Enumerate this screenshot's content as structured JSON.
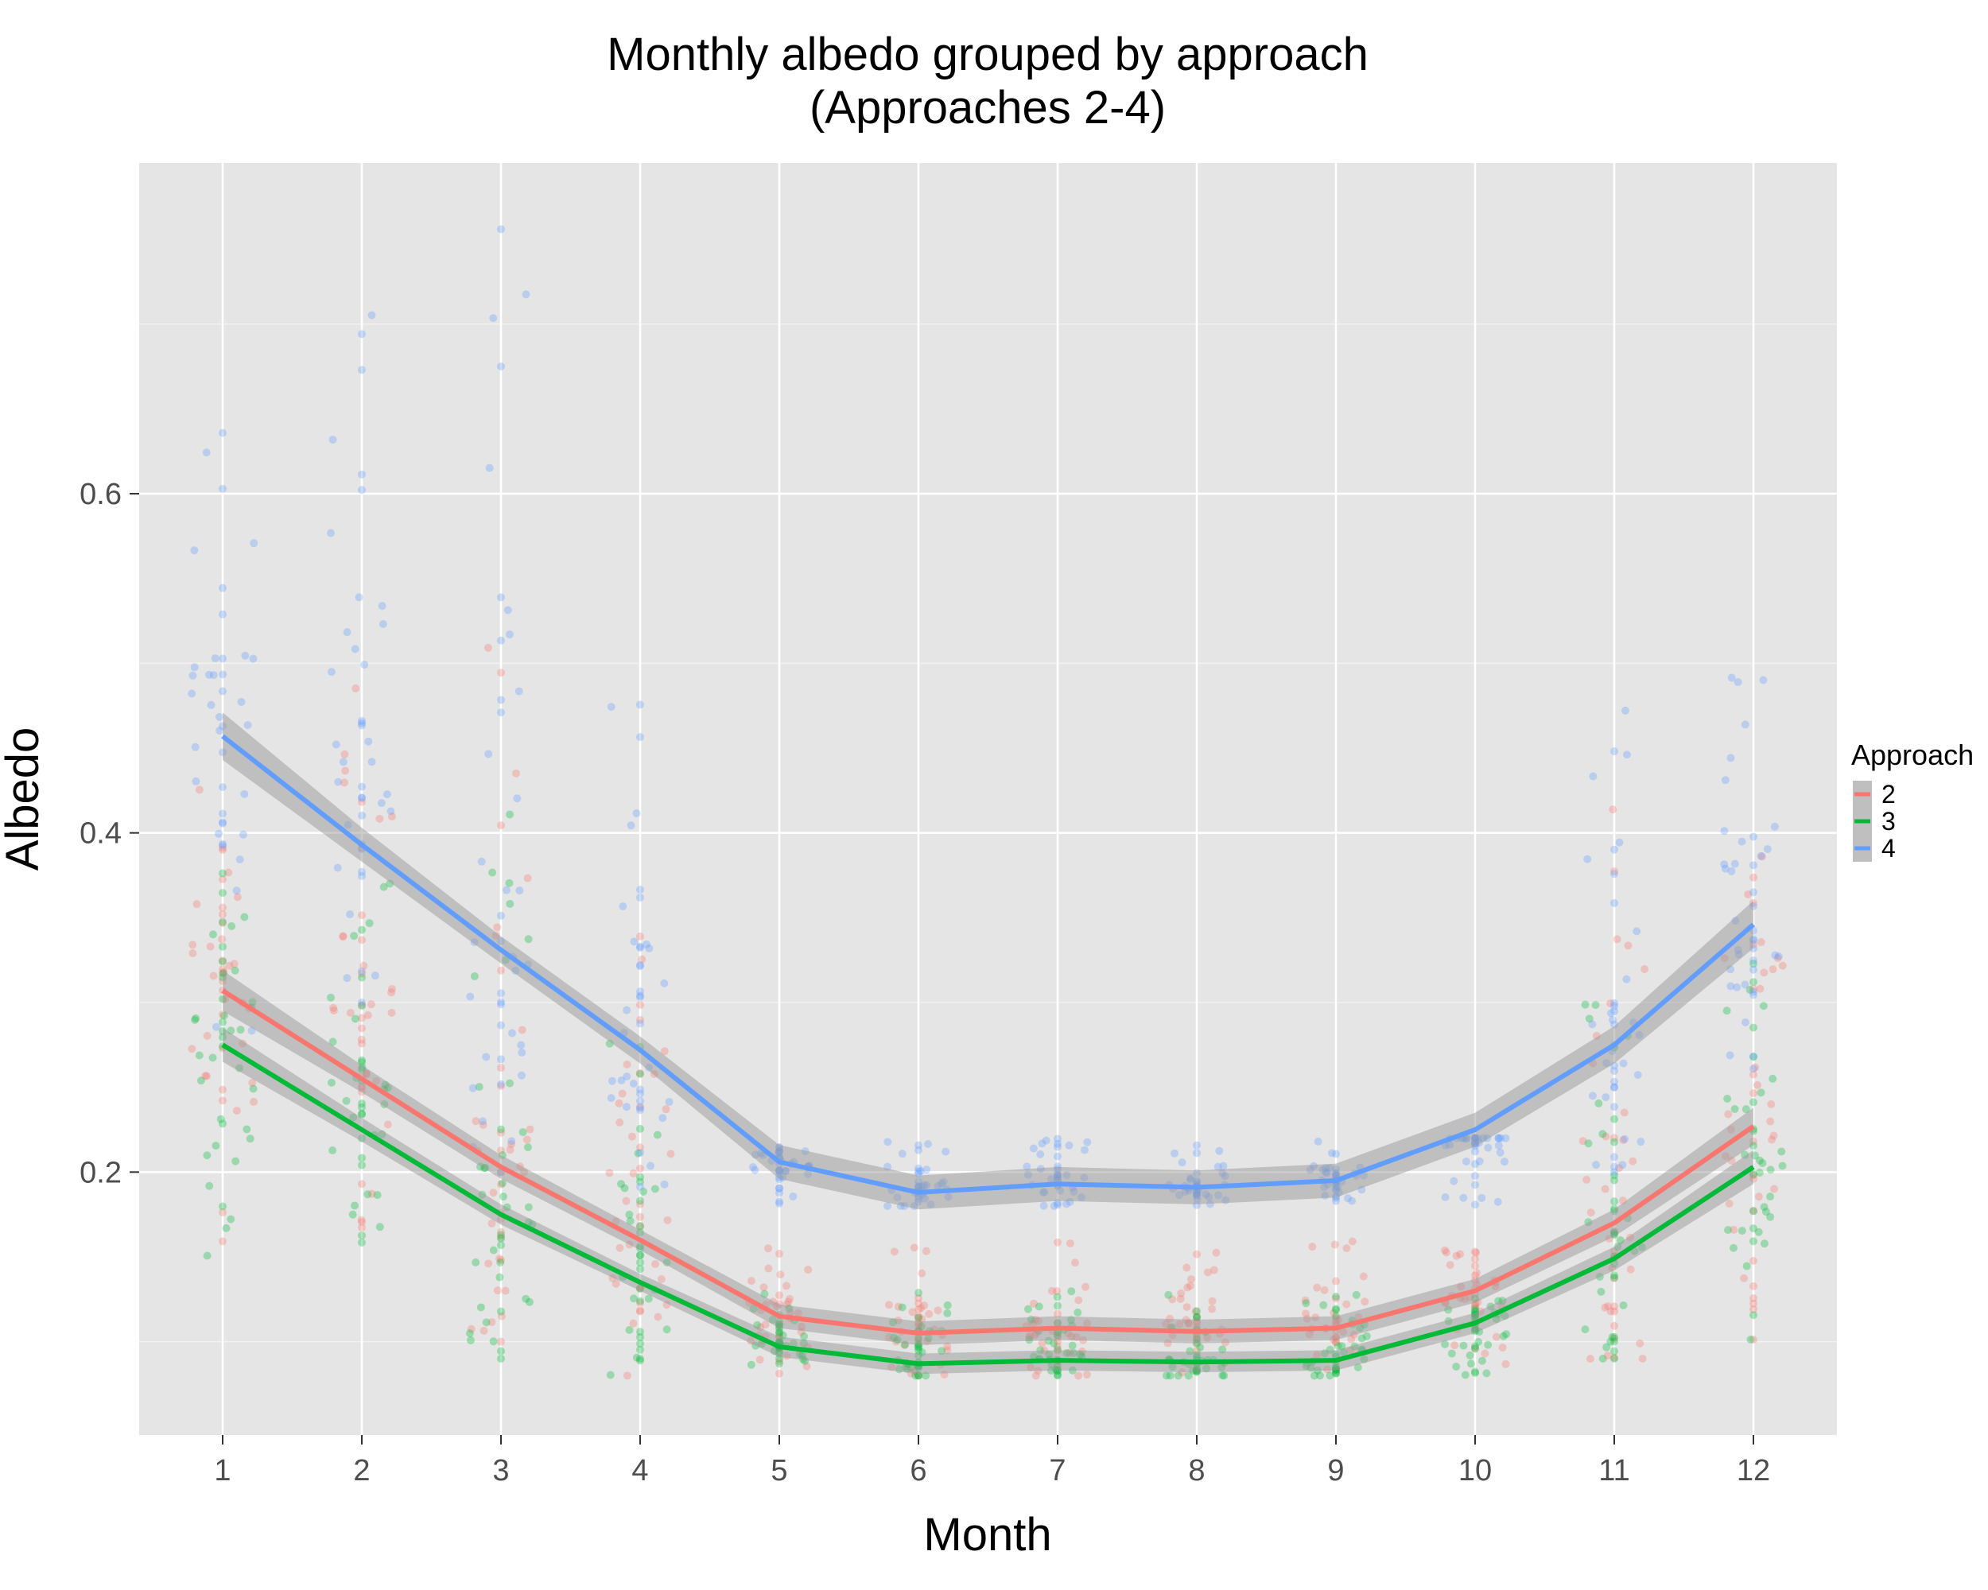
{
  "chart_data": {
    "type": "line",
    "title_line1": "Monthly albedo grouped by approach",
    "title_line2": "(Approaches 2-4)",
    "xlabel": "Month",
    "ylabel": "Albedo",
    "x": [
      1,
      2,
      3,
      4,
      5,
      6,
      7,
      8,
      9,
      10,
      11,
      12
    ],
    "x_tick_labels": [
      "1",
      "2",
      "3",
      "4",
      "5",
      "6",
      "7",
      "8",
      "9",
      "10",
      "11",
      "12"
    ],
    "y_ticks": [
      0.2,
      0.4,
      0.6
    ],
    "y_tick_labels": [
      "0.2",
      "0.4",
      "0.6"
    ],
    "xlim": [
      0.4,
      12.6
    ],
    "ylim": [
      0.045,
      0.795
    ],
    "grid": true,
    "legend": {
      "title": "Approach",
      "position": "right"
    },
    "series": [
      {
        "name": "2",
        "color": "#F8766D",
        "values": [
          0.307,
          0.255,
          0.203,
          0.16,
          0.115,
          0.105,
          0.108,
          0.106,
          0.108,
          0.13,
          0.17,
          0.227
        ],
        "ci_halfwidth": [
          0.012,
          0.008,
          0.007,
          0.006,
          0.007,
          0.007,
          0.007,
          0.007,
          0.007,
          0.007,
          0.008,
          0.011
        ],
        "points": {
          "1": [
            0.15,
            0.45
          ],
          "2": [
            0.15,
            0.51
          ],
          "3": [
            0.1,
            0.51
          ],
          "4": [
            0.08,
            0.36
          ],
          "5": [
            0.08,
            0.16
          ],
          "6": [
            0.08,
            0.16
          ],
          "7": [
            0.08,
            0.16
          ],
          "8": [
            0.08,
            0.16
          ],
          "9": [
            0.08,
            0.16
          ],
          "10": [
            0.08,
            0.16
          ],
          "11": [
            0.09,
            0.42
          ],
          "12": [
            0.1,
            0.4
          ]
        }
      },
      {
        "name": "3",
        "color": "#00BA38",
        "values": [
          0.275,
          0.225,
          0.175,
          0.135,
          0.097,
          0.087,
          0.089,
          0.088,
          0.089,
          0.111,
          0.149,
          0.203
        ],
        "ci_halfwidth": [
          0.01,
          0.007,
          0.006,
          0.005,
          0.006,
          0.006,
          0.006,
          0.006,
          0.006,
          0.006,
          0.007,
          0.01
        ],
        "points": {
          "1": [
            0.15,
            0.39
          ],
          "2": [
            0.15,
            0.38
          ],
          "3": [
            0.09,
            0.42
          ],
          "4": [
            0.08,
            0.29
          ],
          "5": [
            0.08,
            0.13
          ],
          "6": [
            0.08,
            0.13
          ],
          "7": [
            0.08,
            0.13
          ],
          "8": [
            0.08,
            0.13
          ],
          "9": [
            0.08,
            0.13
          ],
          "10": [
            0.08,
            0.13
          ],
          "11": [
            0.09,
            0.36
          ],
          "12": [
            0.1,
            0.34
          ]
        }
      },
      {
        "name": "4",
        "color": "#619CFF",
        "values": [
          0.457,
          0.393,
          0.331,
          0.272,
          0.206,
          0.188,
          0.193,
          0.191,
          0.195,
          0.225,
          0.275,
          0.346
        ],
        "ci_halfwidth": [
          0.014,
          0.01,
          0.008,
          0.008,
          0.01,
          0.01,
          0.01,
          0.01,
          0.01,
          0.01,
          0.011,
          0.014
        ],
        "points": {
          "1": [
            0.27,
            0.65
          ],
          "2": [
            0.3,
            0.72
          ],
          "3": [
            0.2,
            0.76
          ],
          "4": [
            0.19,
            0.48
          ],
          "5": [
            0.18,
            0.22
          ],
          "6": [
            0.18,
            0.22
          ],
          "7": [
            0.18,
            0.22
          ],
          "8": [
            0.18,
            0.22
          ],
          "9": [
            0.18,
            0.22
          ],
          "10": [
            0.18,
            0.22
          ],
          "11": [
            0.2,
            0.49
          ],
          "12": [
            0.23,
            0.5
          ]
        }
      }
    ]
  }
}
